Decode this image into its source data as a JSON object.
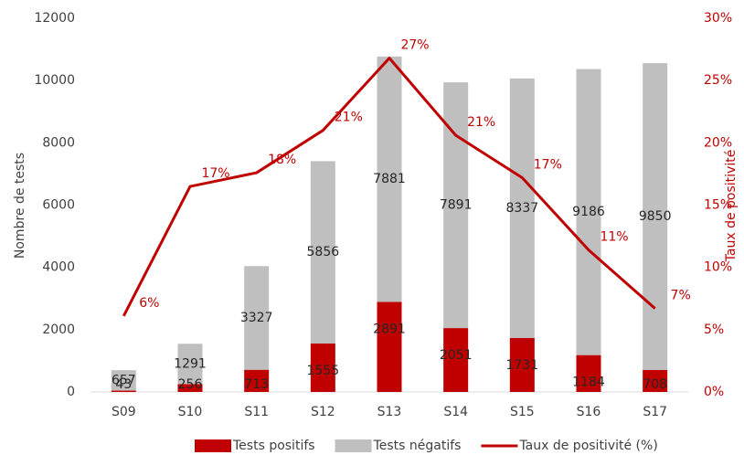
{
  "chart_data": {
    "type": "bar",
    "categories": [
      "S09",
      "S10",
      "S11",
      "S12",
      "S13",
      "S14",
      "S15",
      "S16",
      "S17"
    ],
    "series": [
      {
        "name": "Tests positifs",
        "color": "#c00000",
        "values": [
          43,
          256,
          713,
          1555,
          2891,
          2051,
          1731,
          1184,
          708
        ]
      },
      {
        "name": "Tests négatifs",
        "color": "#bfbfbf",
        "values": [
          657,
          1291,
          3327,
          5856,
          7881,
          7891,
          8337,
          9186,
          9850
        ]
      },
      {
        "name": "Taux de positivité (%)",
        "color": "#c00000",
        "type": "line",
        "axis": "y2",
        "values": [
          6.1,
          16.5,
          17.6,
          21.0,
          26.8,
          20.6,
          17.2,
          11.4,
          6.7
        ],
        "value_labels": [
          "6%",
          "17%",
          "18%",
          "21%",
          "27%",
          "21%",
          "17%",
          "11%",
          "7%"
        ]
      }
    ],
    "ylabel": "Nombre de tests",
    "y2label": "Taux de positivité",
    "ylim": [
      0,
      12000
    ],
    "yticks": [
      0,
      2000,
      4000,
      6000,
      8000,
      10000,
      12000
    ],
    "y2lim": [
      0,
      30
    ],
    "y2ticks": [
      {
        "value": 0,
        "label": "0%"
      },
      {
        "value": 5,
        "label": "5%"
      },
      {
        "value": 10,
        "label": "10%"
      },
      {
        "value": 15,
        "label": "15%"
      },
      {
        "value": 20,
        "label": "20%"
      },
      {
        "value": 25,
        "label": "25%"
      },
      {
        "value": 30,
        "label": "30%"
      }
    ],
    "y2color": "#c00000",
    "stacked": true,
    "legend": "bottom"
  }
}
